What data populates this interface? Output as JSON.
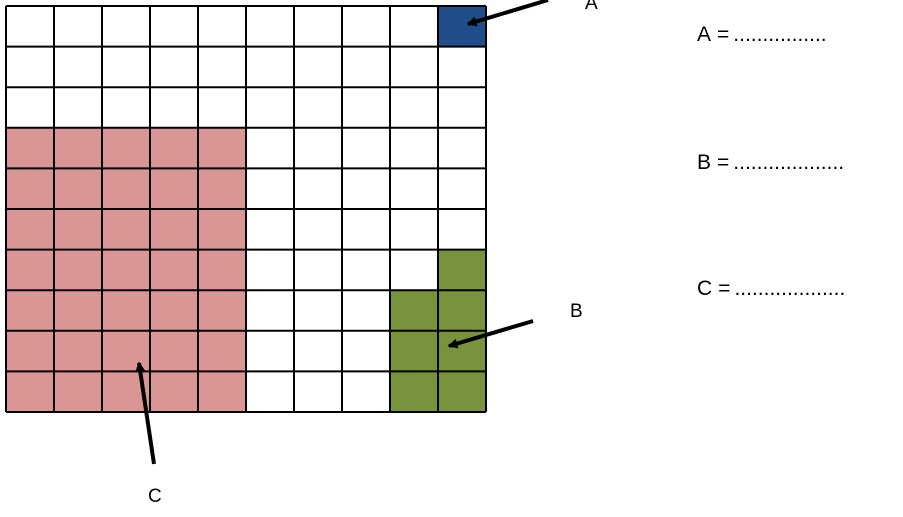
{
  "grid": {
    "rows": 10,
    "cols": 10,
    "colors": {
      "empty": "#ffffff",
      "line": "#000000",
      "region_a": "#1f4e8a",
      "region_b": "#77933c",
      "region_c": "#da9694"
    },
    "regions": {
      "A": {
        "fill": "region_a",
        "cells": [
          [
            0,
            9
          ]
        ]
      },
      "B": {
        "fill": "region_b",
        "cells": [
          [
            6,
            9
          ],
          [
            7,
            8
          ],
          [
            7,
            9
          ],
          [
            8,
            8
          ],
          [
            8,
            9
          ],
          [
            9,
            8
          ],
          [
            9,
            9
          ]
        ]
      },
      "C": {
        "fill": "region_c",
        "row_range": [
          3,
          9
        ],
        "col_range": [
          0,
          4
        ]
      }
    }
  },
  "callouts": {
    "a": {
      "label": "A"
    },
    "b": {
      "label": "B"
    },
    "c": {
      "label": "C"
    }
  },
  "answers": [
    {
      "label": "A",
      "eq": "=",
      "dots": "................"
    },
    {
      "label": "B",
      "eq": "=",
      "dots": "..................."
    },
    {
      "label": "C",
      "eq": "=",
      "dots": "..................."
    }
  ]
}
